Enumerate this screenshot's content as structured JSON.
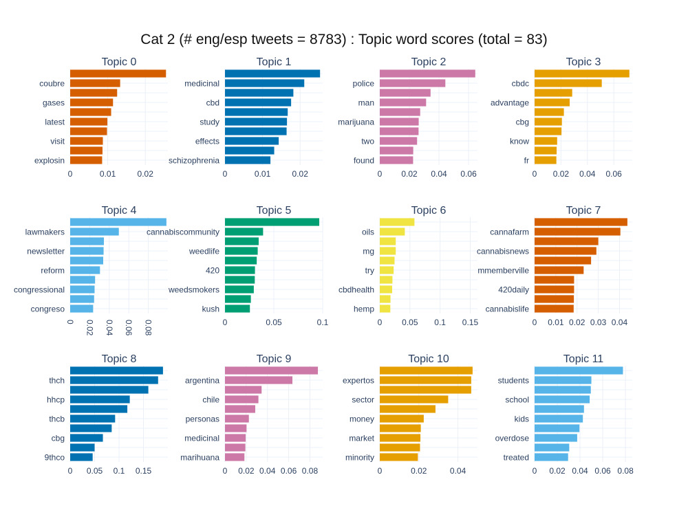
{
  "title": "Cat 2 (# eng/esp tweets = 8783) : Topic word scores (total = 83)",
  "colors": {
    "text": "#2a3f5f",
    "grid": "#ebf0f8",
    "palette": [
      "#D55E00",
      "#0072B2",
      "#CC79A7",
      "#E69F00",
      "#56B4E9",
      "#009E73",
      "#F0E442"
    ]
  },
  "chart_data": [
    {
      "type": "bar",
      "orientation": "horizontal",
      "title": "Topic 0",
      "color": "#D55E00",
      "xlim": [
        0,
        0.026
      ],
      "xticks": [
        0,
        0.01,
        0.02
      ],
      "tick_labels": [
        "0",
        "0.01",
        "0.02"
      ],
      "categories": [
        "explosin",
        "",
        "visit",
        "",
        "latest",
        "",
        "gases",
        "",
        "coubre",
        ""
      ],
      "values": [
        0.0085,
        0.0086,
        0.0087,
        0.0098,
        0.0099,
        0.0109,
        0.0114,
        0.0125,
        0.0133,
        0.0255
      ]
    },
    {
      "type": "bar",
      "orientation": "horizontal",
      "title": "Topic 1",
      "color": "#0072B2",
      "xlim": [
        0,
        0.026
      ],
      "xticks": [
        0,
        0.01,
        0.02
      ],
      "tick_labels": [
        "0",
        "0.01",
        "0.02"
      ],
      "categories": [
        "schizophrenia",
        "",
        "effects",
        "",
        "study",
        "",
        "cbd",
        "",
        "medicinal",
        ""
      ],
      "values": [
        0.0121,
        0.0131,
        0.0143,
        0.0164,
        0.0165,
        0.0167,
        0.0176,
        0.0182,
        0.0211,
        0.0253
      ]
    },
    {
      "type": "bar",
      "orientation": "horizontal",
      "title": "Topic 2",
      "color": "#CC79A7",
      "xlim": [
        0,
        0.066
      ],
      "xticks": [
        0,
        0.02,
        0.04,
        0.06
      ],
      "tick_labels": [
        "0",
        "0.02",
        "0.04",
        "0.06"
      ],
      "categories": [
        "found",
        "",
        "two",
        "",
        "marijuana",
        "",
        "man",
        "",
        "police",
        ""
      ],
      "values": [
        0.0225,
        0.0226,
        0.0252,
        0.0262,
        0.0263,
        0.0273,
        0.0313,
        0.0343,
        0.0443,
        0.0645
      ]
    },
    {
      "type": "bar",
      "orientation": "horizontal",
      "title": "Topic 3",
      "color": "#E69F00",
      "xlim": [
        0,
        0.074
      ],
      "xticks": [
        0,
        0.02,
        0.04,
        0.06
      ],
      "tick_labels": [
        "0",
        "0.02",
        "0.04",
        "0.06"
      ],
      "categories": [
        "fr",
        "",
        "know",
        "",
        "cbg",
        "",
        "advantage",
        "",
        "cbdc",
        ""
      ],
      "values": [
        0.0165,
        0.0167,
        0.0171,
        0.0204,
        0.0207,
        0.0222,
        0.0266,
        0.0285,
        0.0509,
        0.0718
      ]
    },
    {
      "type": "bar",
      "orientation": "horizontal",
      "title": "Topic 4",
      "color": "#56B4E9",
      "xlim": [
        0,
        0.1
      ],
      "xticks": [
        0,
        0.02,
        0.04,
        0.06,
        0.08
      ],
      "tick_labels": [
        "0",
        "0.02",
        "0.04",
        "0.06",
        "0.08"
      ],
      "tick_rotation": 90,
      "categories": [
        "congreso",
        "",
        "congressional",
        "",
        "reform",
        "",
        "newsletter",
        "",
        "lawmakers",
        ""
      ],
      "values": [
        0.0235,
        0.0245,
        0.025,
        0.0255,
        0.0305,
        0.0338,
        0.0342,
        0.0345,
        0.0498,
        0.0985
      ]
    },
    {
      "type": "bar",
      "orientation": "horizontal",
      "title": "Topic 5",
      "color": "#009E73",
      "xlim": [
        0,
        0.1
      ],
      "xticks": [
        0,
        0.05,
        0.1
      ],
      "tick_labels": [
        "0",
        "0.05",
        "0.1"
      ],
      "categories": [
        "kush",
        "",
        "weedsmokers",
        "",
        "420",
        "",
        "weedlife",
        "",
        "cannabiscommunity",
        ""
      ],
      "values": [
        0.0255,
        0.0265,
        0.0295,
        0.0305,
        0.0307,
        0.0325,
        0.0335,
        0.0345,
        0.039,
        0.0965
      ]
    },
    {
      "type": "bar",
      "orientation": "horizontal",
      "title": "Topic 6",
      "color": "#F0E442",
      "xlim": [
        0,
        0.162
      ],
      "xticks": [
        0,
        0.05,
        0.1,
        0.15
      ],
      "tick_labels": [
        "0",
        "0.05",
        "0.1",
        "0.15"
      ],
      "categories": [
        "hemp",
        "",
        "cbdhealth",
        "",
        "try",
        "",
        "mg",
        "",
        "oils",
        ""
      ],
      "values": [
        0.0175,
        0.0178,
        0.0205,
        0.021,
        0.023,
        0.0245,
        0.0265,
        0.0265,
        0.0415,
        0.0575
      ]
    },
    {
      "type": "bar",
      "orientation": "horizontal",
      "title": "Topic 7",
      "color": "#D55E00",
      "xlim": [
        0,
        0.046
      ],
      "xticks": [
        0,
        0.01,
        0.02,
        0.03,
        0.04
      ],
      "tick_labels": [
        "0",
        "0.01",
        "0.02",
        "0.03",
        "0.04"
      ],
      "categories": [
        "cannabislife",
        "",
        "420daily",
        "",
        "mmemberville",
        "",
        "cannabisnews",
        "",
        "cannafarm",
        ""
      ],
      "values": [
        0.0184,
        0.0185,
        0.0186,
        0.0186,
        0.0231,
        0.0266,
        0.0291,
        0.03,
        0.0404,
        0.0437
      ]
    },
    {
      "type": "bar",
      "orientation": "horizontal",
      "title": "Topic 8",
      "color": "#0072B2",
      "xlim": [
        0,
        0.2
      ],
      "xticks": [
        0,
        0.05,
        0.1,
        0.15
      ],
      "tick_labels": [
        "0",
        "0.05",
        "0.1",
        "0.15"
      ],
      "categories": [
        "9thco",
        "",
        "cbg",
        "",
        "thcb",
        "",
        "hhcp",
        "",
        "thch",
        ""
      ],
      "values": [
        0.046,
        0.05,
        0.067,
        0.085,
        0.092,
        0.117,
        0.122,
        0.16,
        0.18,
        0.19
      ]
    },
    {
      "type": "bar",
      "orientation": "horizontal",
      "title": "Topic 9",
      "color": "#CC79A7",
      "xlim": [
        0,
        0.092
      ],
      "xticks": [
        0,
        0.02,
        0.04,
        0.06,
        0.08
      ],
      "tick_labels": [
        "0",
        "0.02",
        "0.04",
        "0.06",
        "0.08"
      ],
      "categories": [
        "marihuana",
        "",
        "medicinal",
        "",
        "personas",
        "",
        "chile",
        "",
        "argentina",
        ""
      ],
      "values": [
        0.0183,
        0.0192,
        0.0195,
        0.0203,
        0.0225,
        0.0285,
        0.0315,
        0.0345,
        0.0635,
        0.0875
      ]
    },
    {
      "type": "bar",
      "orientation": "horizontal",
      "title": "Topic 10",
      "color": "#E69F00",
      "xlim": [
        0,
        0.05
      ],
      "xticks": [
        0,
        0.02,
        0.04
      ],
      "tick_labels": [
        "0",
        "0.02",
        "0.04"
      ],
      "categories": [
        "minority",
        "",
        "market",
        "",
        "money",
        "",
        "sector",
        "",
        "expertos",
        ""
      ],
      "values": [
        0.0195,
        0.0206,
        0.0208,
        0.021,
        0.0225,
        0.0285,
        0.035,
        0.0468,
        0.0468,
        0.0475
      ]
    },
    {
      "type": "bar",
      "orientation": "horizontal",
      "title": "Topic 11",
      "color": "#56B4E9",
      "xlim": [
        0,
        0.086
      ],
      "xticks": [
        0,
        0.02,
        0.04,
        0.06,
        0.08
      ],
      "tick_labels": [
        "0",
        "0.02",
        "0.04",
        "0.06",
        "0.08"
      ],
      "categories": [
        "treated",
        "",
        "overdose",
        "",
        "kids",
        "",
        "school",
        "",
        "students",
        ""
      ],
      "values": [
        0.0295,
        0.0305,
        0.0375,
        0.0395,
        0.0425,
        0.0435,
        0.0485,
        0.0495,
        0.05,
        0.0778
      ]
    }
  ]
}
